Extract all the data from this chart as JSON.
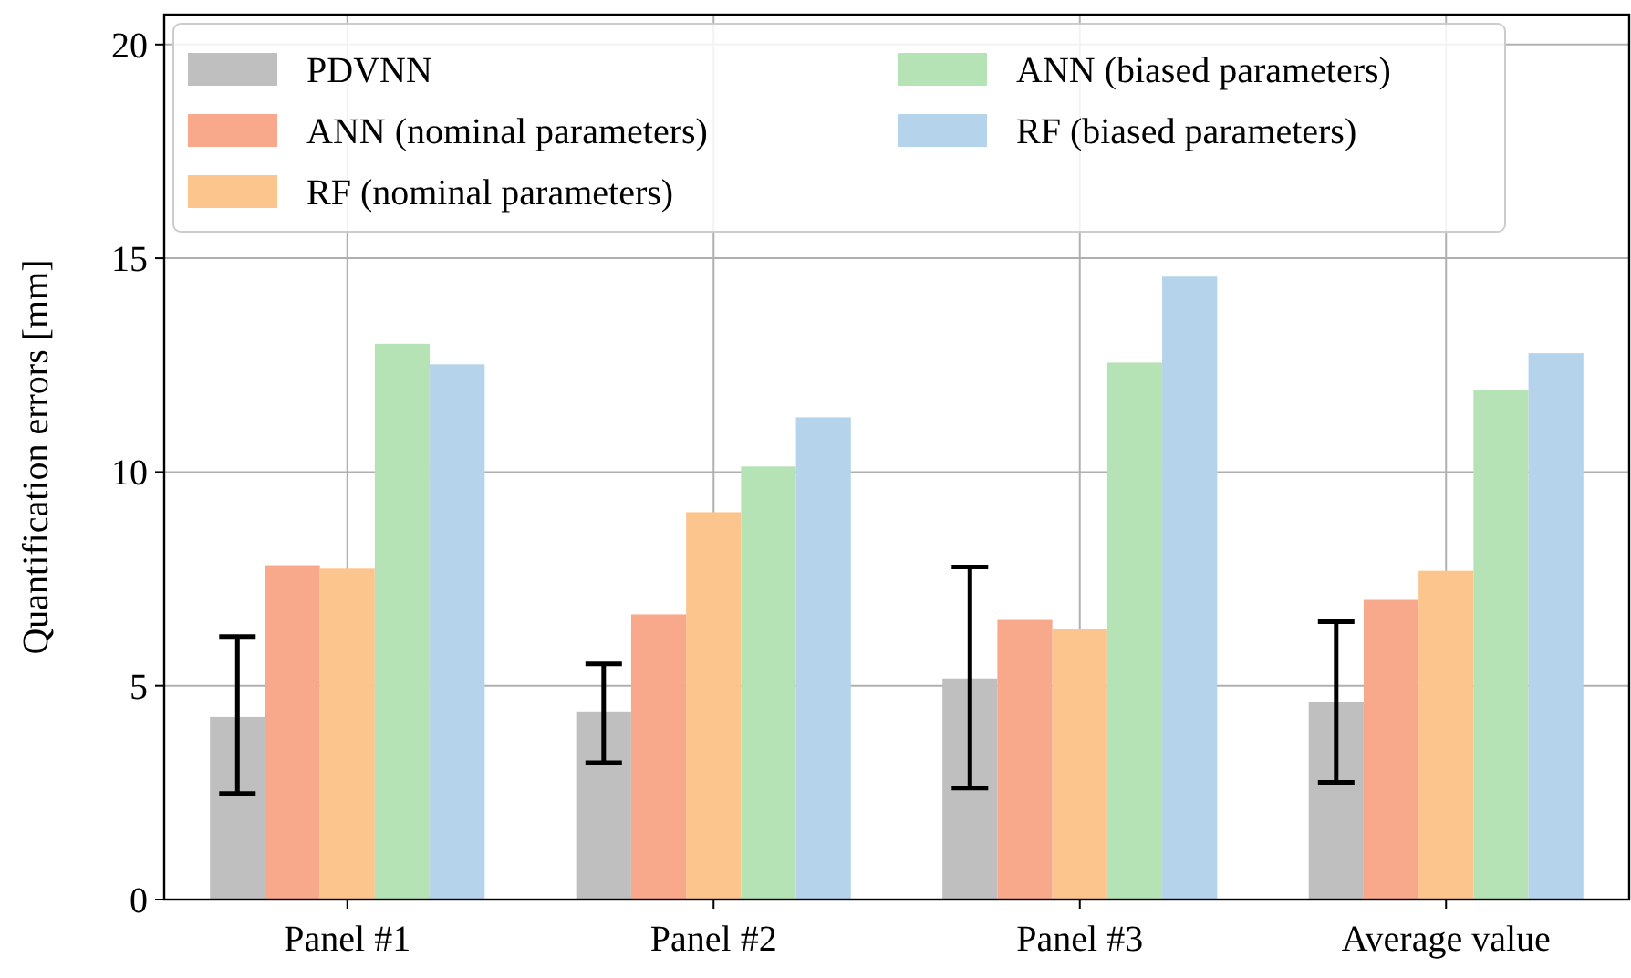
{
  "chart_data": {
    "type": "bar",
    "ylabel": "Quantification errors [mm]",
    "categories": [
      "Panel #1",
      "Panel #2",
      "Panel #3",
      "Average value"
    ],
    "series": [
      {
        "name": "PDVNN",
        "color": "#bfbfbf",
        "values": [
          4.27,
          4.4,
          5.17,
          4.62
        ],
        "errors": [
          [
            2.48,
            6.15
          ],
          [
            3.2,
            5.51
          ],
          [
            2.61,
            7.78
          ],
          [
            2.74,
            6.5
          ]
        ]
      },
      {
        "name": "ANN (nominal parameters)",
        "color": "#f9a98b",
        "values": [
          7.82,
          6.67,
          6.54,
          7.01
        ]
      },
      {
        "name": "RF (nominal parameters)",
        "color": "#fcc58e",
        "values": [
          7.74,
          9.06,
          6.32,
          7.69
        ]
      },
      {
        "name": "ANN (biased parameters)",
        "color": "#b5e3b5",
        "values": [
          13.0,
          10.13,
          12.56,
          11.92
        ]
      },
      {
        "name": "RF (biased parameters)",
        "color": "#b5d3ea",
        "values": [
          12.52,
          11.28,
          14.57,
          12.78
        ]
      }
    ],
    "ylim": [
      0,
      20.7
    ],
    "yticks": [
      0,
      5,
      10,
      15,
      20
    ],
    "grid": true,
    "legend": "top left"
  }
}
